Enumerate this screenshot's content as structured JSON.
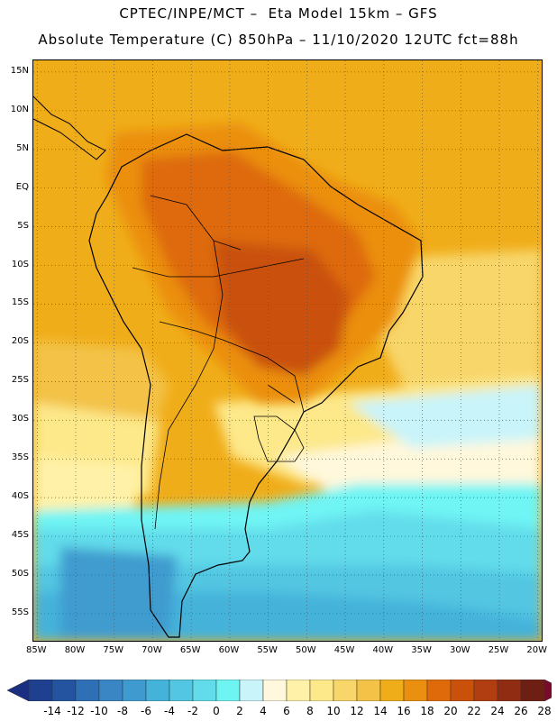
{
  "header": {
    "line1": "CPTEC/INPE/MCT –  Eta Model 15km – GFS",
    "line2": "Absolute Temperature (C) 850hPa – 11/10/2020 12UTC fct=88h"
  },
  "map": {
    "lat_labels": [
      "15N",
      "10N",
      "5N",
      "EQ",
      "5S",
      "10S",
      "15S",
      "20S",
      "25S",
      "30S",
      "35S",
      "40S",
      "45S",
      "50S",
      "55S"
    ],
    "lon_labels": [
      "85W",
      "80W",
      "75W",
      "70W",
      "65W",
      "60W",
      "55W",
      "50W",
      "45W",
      "40W",
      "35W",
      "30W",
      "25W",
      "20W"
    ],
    "gridline_style": "dotted",
    "extent": {
      "lon_min": -85.5,
      "lon_max": -19.5,
      "lat_min": -58.5,
      "lat_max": 16.5
    }
  },
  "colorbar": {
    "values": [
      "-14",
      "-12",
      "-10",
      "-8",
      "-6",
      "-4",
      "-2",
      "0",
      "2",
      "4",
      "6",
      "8",
      "10",
      "12",
      "14",
      "16",
      "18",
      "20",
      "22",
      "24",
      "26",
      "28"
    ],
    "colors": [
      "#1f3f8f",
      "#2454a0",
      "#2f6fb5",
      "#3a86c4",
      "#3f9bcf",
      "#45b2da",
      "#52c6e2",
      "#62dcea",
      "#6ff4f4",
      "#c9f4fa",
      "#fff8dc",
      "#fff2a8",
      "#fde88a",
      "#f8d66a",
      "#f3c247",
      "#f0ad1a",
      "#eb8f10",
      "#de6a0a",
      "#c9510a",
      "#b03e10",
      "#8f2c12",
      "#6e1f14",
      "#7a0a2a"
    ],
    "left_arrow_color": "#1a2f80",
    "right_arrow_color": "#7a0a2a"
  }
}
